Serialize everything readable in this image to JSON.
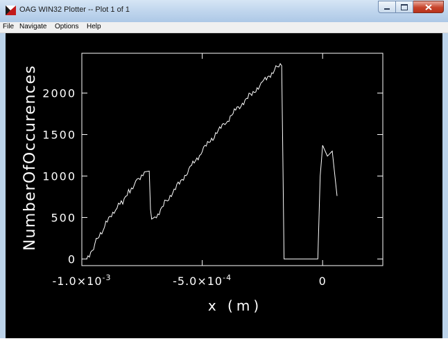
{
  "window": {
    "title": "OAG WIN32 Plotter -- Plot 1 of 1",
    "accent": "#adc8e6"
  },
  "menu": {
    "items": [
      {
        "label": "File"
      },
      {
        "label": "Navigate"
      },
      {
        "label": "Options"
      },
      {
        "label": "Help"
      }
    ]
  },
  "chart_data": {
    "type": "line",
    "title": "",
    "xlabel": "x (m)",
    "ylabel": "NumberOfOccurences",
    "xlim": [
      -0.001,
      0.00025
    ],
    "ylim": [
      -80,
      2480
    ],
    "xticks": [
      {
        "value": -0.001,
        "label": "-1.0×10",
        "exp": "-3"
      },
      {
        "value": -0.0005,
        "label": "-5.0×10",
        "exp": "-4"
      },
      {
        "value": 0,
        "label": "0",
        "exp": ""
      }
    ],
    "yticks": [
      0,
      500,
      1000,
      1500,
      2000
    ],
    "grid": false,
    "series": [
      {
        "color": "#ffffff",
        "points": [
          [
            -0.00098,
            0
          ],
          [
            -0.00094,
            210
          ],
          [
            -0.0009,
            420
          ],
          [
            -0.00086,
            590
          ],
          [
            -0.00083,
            700
          ],
          [
            -0.0008,
            830
          ],
          [
            -0.00077,
            960
          ],
          [
            -0.00074,
            1050
          ],
          [
            -0.00072,
            1060
          ],
          [
            -0.000715,
            600
          ],
          [
            -0.00071,
            480
          ],
          [
            -0.00069,
            520
          ],
          [
            -0.00065,
            700
          ],
          [
            -0.0006,
            900
          ],
          [
            -0.00055,
            1100
          ],
          [
            -0.0005,
            1300
          ],
          [
            -0.00045,
            1480
          ],
          [
            -0.0004,
            1650
          ],
          [
            -0.00035,
            1830
          ],
          [
            -0.0003,
            1980
          ],
          [
            -0.00025,
            2130
          ],
          [
            -0.0002,
            2280
          ],
          [
            -0.00017,
            2330
          ],
          [
            -0.000165,
            1200
          ],
          [
            -0.00016,
            0
          ],
          [
            -0.0001,
            0
          ],
          [
            -5e-05,
            0
          ],
          [
            -2e-05,
            0
          ],
          [
            -1e-05,
            1000
          ],
          [
            0,
            1370
          ],
          [
            2e-05,
            1240
          ],
          [
            4e-05,
            1300
          ],
          [
            6e-05,
            760
          ]
        ]
      }
    ]
  }
}
